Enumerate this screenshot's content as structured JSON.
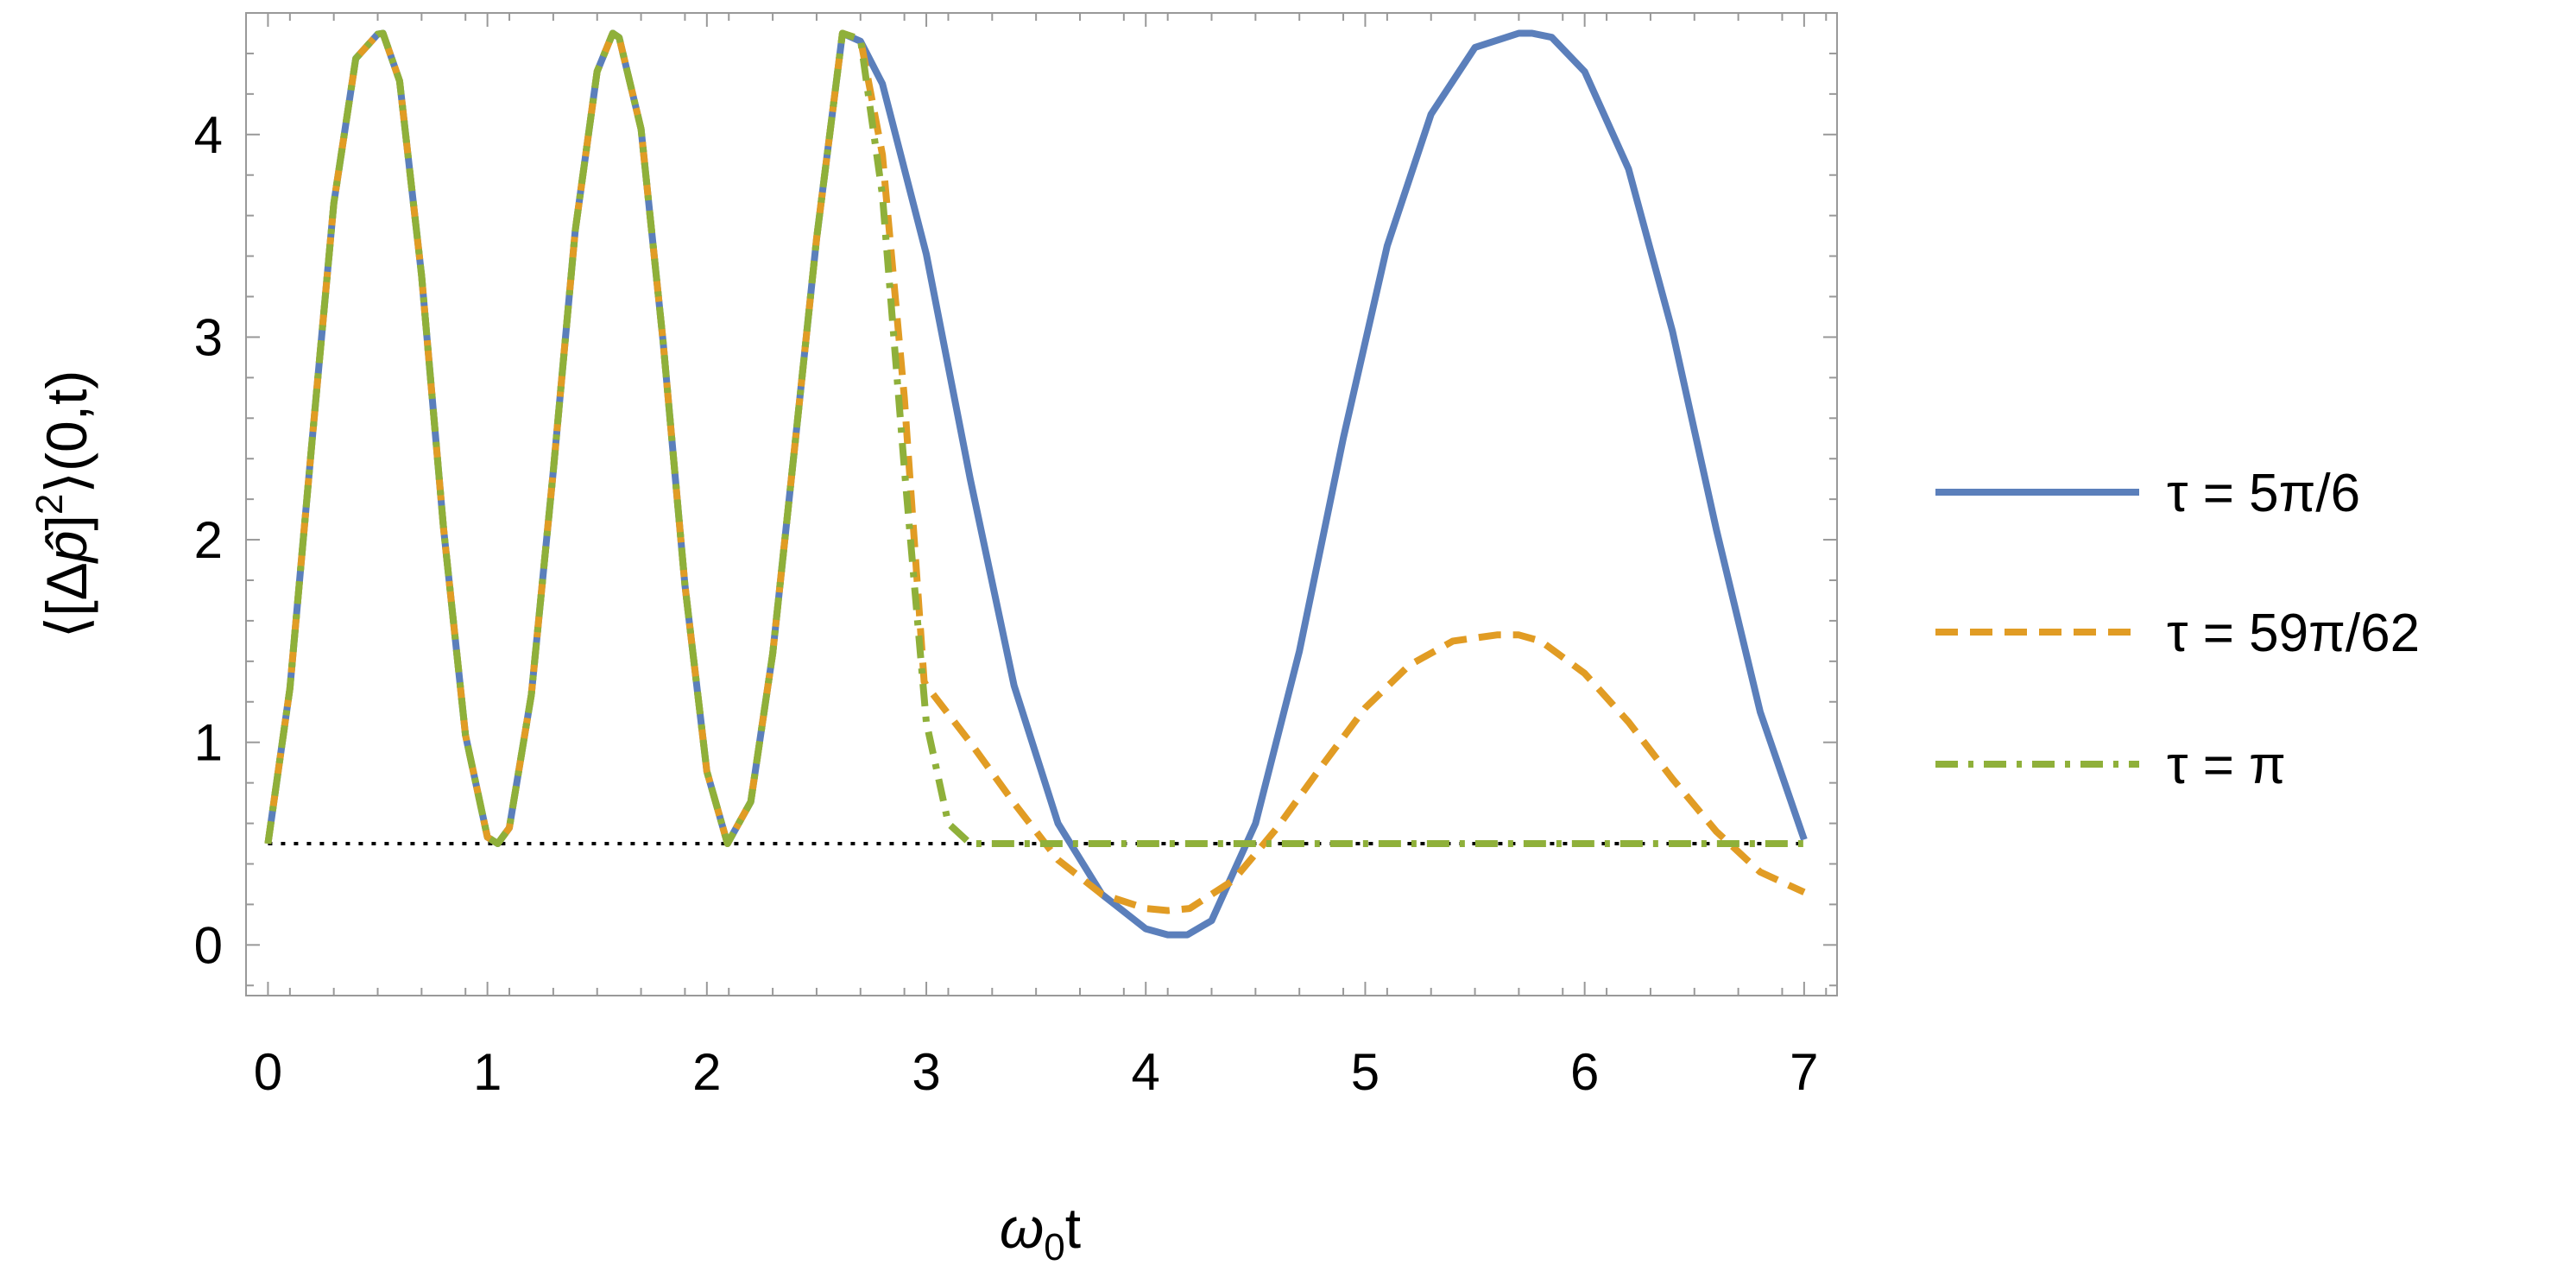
{
  "chart_data": {
    "type": "line",
    "xlabel": "ω₀t",
    "xlabel_parts": {
      "main": "ω",
      "sub": "0",
      "rest": "t"
    },
    "ylabel": "⟨[Δp̂]²⟩(0,t)",
    "ylabel_parts": {
      "pre": "⟨[Δ",
      "hat": "p̂",
      "close": "]",
      "sup": "2",
      "post": "⟩(0,t)"
    },
    "xlim": [
      -0.1,
      7.15
    ],
    "ylim": [
      -0.25,
      4.6
    ],
    "xticks": [
      0,
      1,
      2,
      3,
      4,
      5,
      6,
      7
    ],
    "yticks": [
      0,
      1,
      2,
      3,
      4
    ],
    "grid": false,
    "legend_position": "right",
    "reference_line": {
      "y": 0.5,
      "x_range": [
        0,
        7
      ],
      "style": "dotted",
      "color": "#000000"
    },
    "series": [
      {
        "name": "τ = 5π/6",
        "color": "#5b7fbb",
        "style": "solid",
        "x": [
          0,
          0.1,
          0.2,
          0.3,
          0.4,
          0.5,
          0.524,
          0.6,
          0.7,
          0.8,
          0.9,
          1.0,
          1.047,
          1.1,
          1.2,
          1.3,
          1.4,
          1.5,
          1.571,
          1.6,
          1.7,
          1.8,
          1.9,
          2.0,
          2.094,
          2.2,
          2.3,
          2.4,
          2.5,
          2.618,
          2.7,
          2.8,
          3.0,
          3.2,
          3.4,
          3.6,
          3.8,
          4.0,
          4.1,
          4.19,
          4.3,
          4.5,
          4.7,
          4.9,
          5.1,
          5.3,
          5.5,
          5.7,
          5.76,
          5.85,
          6.0,
          6.2,
          6.4,
          6.6,
          6.8,
          7.0
        ],
        "y": [
          0.5,
          1.265,
          2.478,
          3.661,
          4.375,
          4.495,
          4.5,
          4.264,
          3.302,
          2.056,
          1.036,
          0.532,
          0.5,
          0.578,
          1.235,
          2.338,
          3.524,
          4.311,
          4.5,
          4.479,
          4.027,
          2.983,
          1.777,
          0.857,
          0.5,
          0.707,
          1.438,
          2.455,
          3.485,
          4.5,
          4.46,
          4.25,
          3.41,
          2.3,
          1.28,
          0.6,
          0.25,
          0.08,
          0.05,
          0.05,
          0.12,
          0.6,
          1.45,
          2.5,
          3.45,
          4.1,
          4.43,
          4.5,
          4.5,
          4.48,
          4.31,
          3.83,
          3.03,
          2.05,
          1.15,
          0.52
        ]
      },
      {
        "name": "τ = 59π/62",
        "color": "#e19c24",
        "style": "dashed",
        "x": [
          0,
          0.1,
          0.2,
          0.3,
          0.4,
          0.5,
          0.524,
          0.6,
          0.7,
          0.8,
          0.9,
          1.0,
          1.047,
          1.1,
          1.2,
          1.3,
          1.4,
          1.5,
          1.571,
          1.6,
          1.7,
          1.8,
          1.9,
          2.0,
          2.094,
          2.2,
          2.3,
          2.4,
          2.5,
          2.618,
          2.7,
          2.8,
          2.9,
          2.99,
          3.0,
          3.2,
          3.4,
          3.6,
          3.8,
          4.0,
          4.1,
          4.2,
          4.4,
          4.6,
          4.8,
          5.0,
          5.2,
          5.4,
          5.6,
          5.7,
          5.8,
          6.0,
          6.2,
          6.4,
          6.6,
          6.8,
          7.0
        ],
        "y": [
          0.5,
          1.265,
          2.478,
          3.661,
          4.375,
          4.495,
          4.5,
          4.264,
          3.302,
          2.056,
          1.036,
          0.532,
          0.5,
          0.578,
          1.235,
          2.338,
          3.524,
          4.311,
          4.5,
          4.479,
          4.027,
          2.983,
          1.777,
          0.857,
          0.5,
          0.707,
          1.438,
          2.455,
          3.485,
          4.5,
          4.47,
          3.9,
          2.7,
          1.3,
          1.28,
          1.0,
          0.7,
          0.42,
          0.25,
          0.18,
          0.17,
          0.18,
          0.32,
          0.58,
          0.88,
          1.17,
          1.38,
          1.5,
          1.53,
          1.53,
          1.5,
          1.34,
          1.1,
          0.82,
          0.56,
          0.36,
          0.26
        ]
      },
      {
        "name": "τ = π",
        "color": "#8fb03a",
        "style": "dashdot",
        "x": [
          0,
          0.1,
          0.2,
          0.3,
          0.4,
          0.5,
          0.524,
          0.6,
          0.7,
          0.8,
          0.9,
          1.0,
          1.047,
          1.1,
          1.2,
          1.3,
          1.4,
          1.5,
          1.571,
          1.6,
          1.7,
          1.8,
          1.9,
          2.0,
          2.094,
          2.2,
          2.3,
          2.4,
          2.5,
          2.618,
          2.7,
          2.8,
          2.9,
          3.0,
          3.1,
          3.2,
          3.5,
          4.0,
          5.0,
          6.0,
          7.0
        ],
        "y": [
          0.5,
          1.265,
          2.478,
          3.661,
          4.375,
          4.495,
          4.5,
          4.264,
          3.302,
          2.056,
          1.036,
          0.532,
          0.5,
          0.578,
          1.235,
          2.338,
          3.524,
          4.311,
          4.5,
          4.479,
          4.027,
          2.983,
          1.777,
          0.857,
          0.5,
          0.707,
          1.438,
          2.455,
          3.485,
          4.5,
          4.47,
          3.7,
          2.35,
          1.1,
          0.6,
          0.5,
          0.5,
          0.5,
          0.5,
          0.5,
          0.5
        ]
      }
    ]
  }
}
